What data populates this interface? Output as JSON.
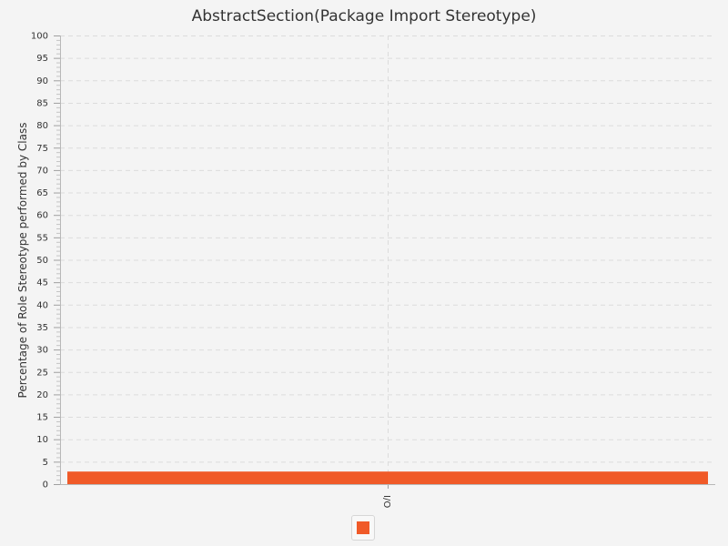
{
  "chart_data": {
    "type": "bar",
    "title": "AbstractSection(Package Import Stereotype)",
    "xlabel": "",
    "ylabel": "Percentage of Role Stereotype performed by Class",
    "categories": [
      "I/O"
    ],
    "series": [
      {
        "name": "",
        "values": [
          2.8
        ],
        "color": "#f05a28"
      }
    ],
    "ylim": [
      0,
      100
    ],
    "ytick_step": 5,
    "yminor_step": 1,
    "grid": true,
    "legend": "bottom-center"
  }
}
